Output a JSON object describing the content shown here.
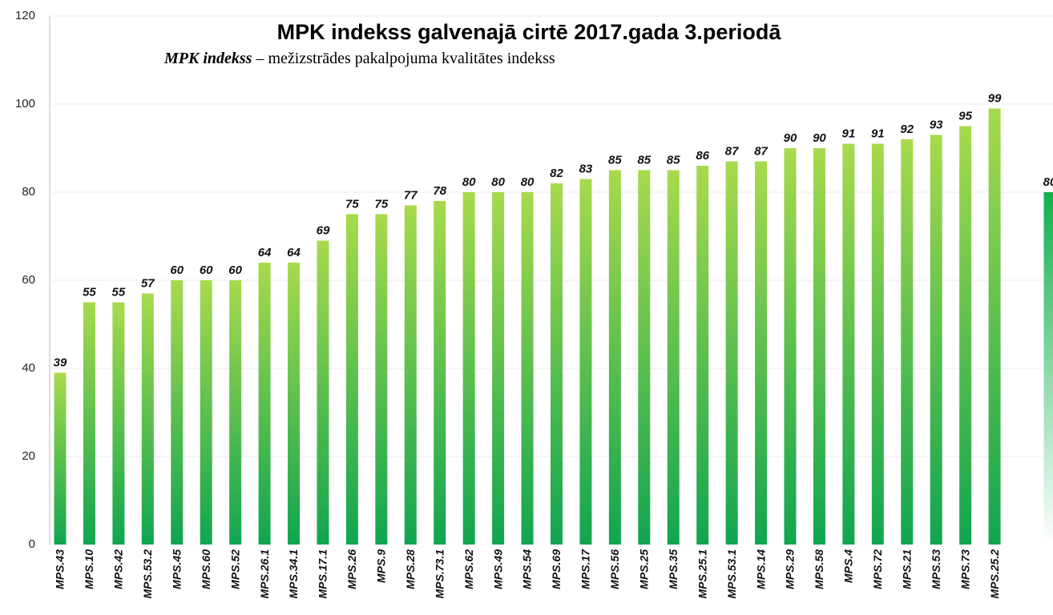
{
  "chart_data": {
    "type": "bar",
    "title": "MPK indekss galvenajā cirtē 2017.gada 3.periodā",
    "subtitle_term": "MPK indekss",
    "subtitle_rest": "– mežizstrādes pakalpojuma kvalitātes indekss",
    "categories": [
      "MPS.43",
      "MPS.10",
      "MPS.42",
      "MPS.53.2",
      "MPS.45",
      "MPS.60",
      "MPS.52",
      "MPS.26.1",
      "MPS.34.1",
      "MPS.17.1",
      "MPS.26",
      "MPS.9",
      "MPS.28",
      "MPS.73.1",
      "MPS.62",
      "MPS.49",
      "MPS.54",
      "MPS.69",
      "MPS.17",
      "MPS.56",
      "MPS.25",
      "MPS.35",
      "MPS.25.1",
      "MPS.53.1",
      "MPS.14",
      "MPS.29",
      "MPS.58",
      "MPS.4",
      "MPS.72",
      "MPS.21",
      "MPS.53",
      "MPS.73",
      "MPS.25.2",
      null
    ],
    "values": [
      39,
      55,
      55,
      57,
      60,
      60,
      60,
      64,
      64,
      69,
      75,
      75,
      77,
      78,
      80,
      80,
      80,
      82,
      83,
      85,
      85,
      85,
      86,
      87,
      87,
      90,
      90,
      91,
      91,
      92,
      93,
      95,
      99,
      80
    ],
    "colors": [
      "#a8da4c",
      "#10a550"
    ],
    "highlight_colors": [
      "#12b04e",
      "#ffffff"
    ],
    "ylim": [
      0,
      120
    ],
    "yticks": [
      0,
      20,
      40,
      60,
      80,
      100,
      120
    ],
    "grid": true
  }
}
